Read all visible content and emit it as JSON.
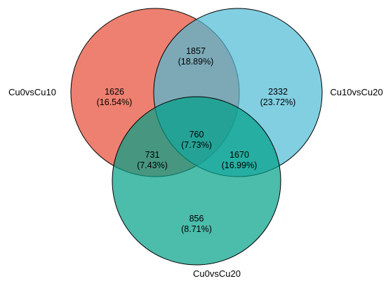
{
  "sets": [
    {
      "name": "Cu0vsCu10",
      "color": "#E8604C"
    },
    {
      "name": "Cu10vsCu20",
      "color": "#4DBBD5"
    },
    {
      "name": "Cu0vsCu20",
      "color": "#00A087"
    }
  ],
  "regions": {
    "a_only": {
      "count": "1626",
      "pct": "(16.54%)"
    },
    "ab": {
      "count": "1857",
      "pct": "(18.89%)"
    },
    "b_only": {
      "count": "2332",
      "pct": "(23.72%)"
    },
    "abc": {
      "count": "760",
      "pct": "(7.73%)"
    },
    "ac": {
      "count": "731",
      "pct": "(7.43%)"
    },
    "bc": {
      "count": "1670",
      "pct": "(16.99%)"
    },
    "c_only": {
      "count": "856",
      "pct": "(8.71%)"
    }
  }
}
